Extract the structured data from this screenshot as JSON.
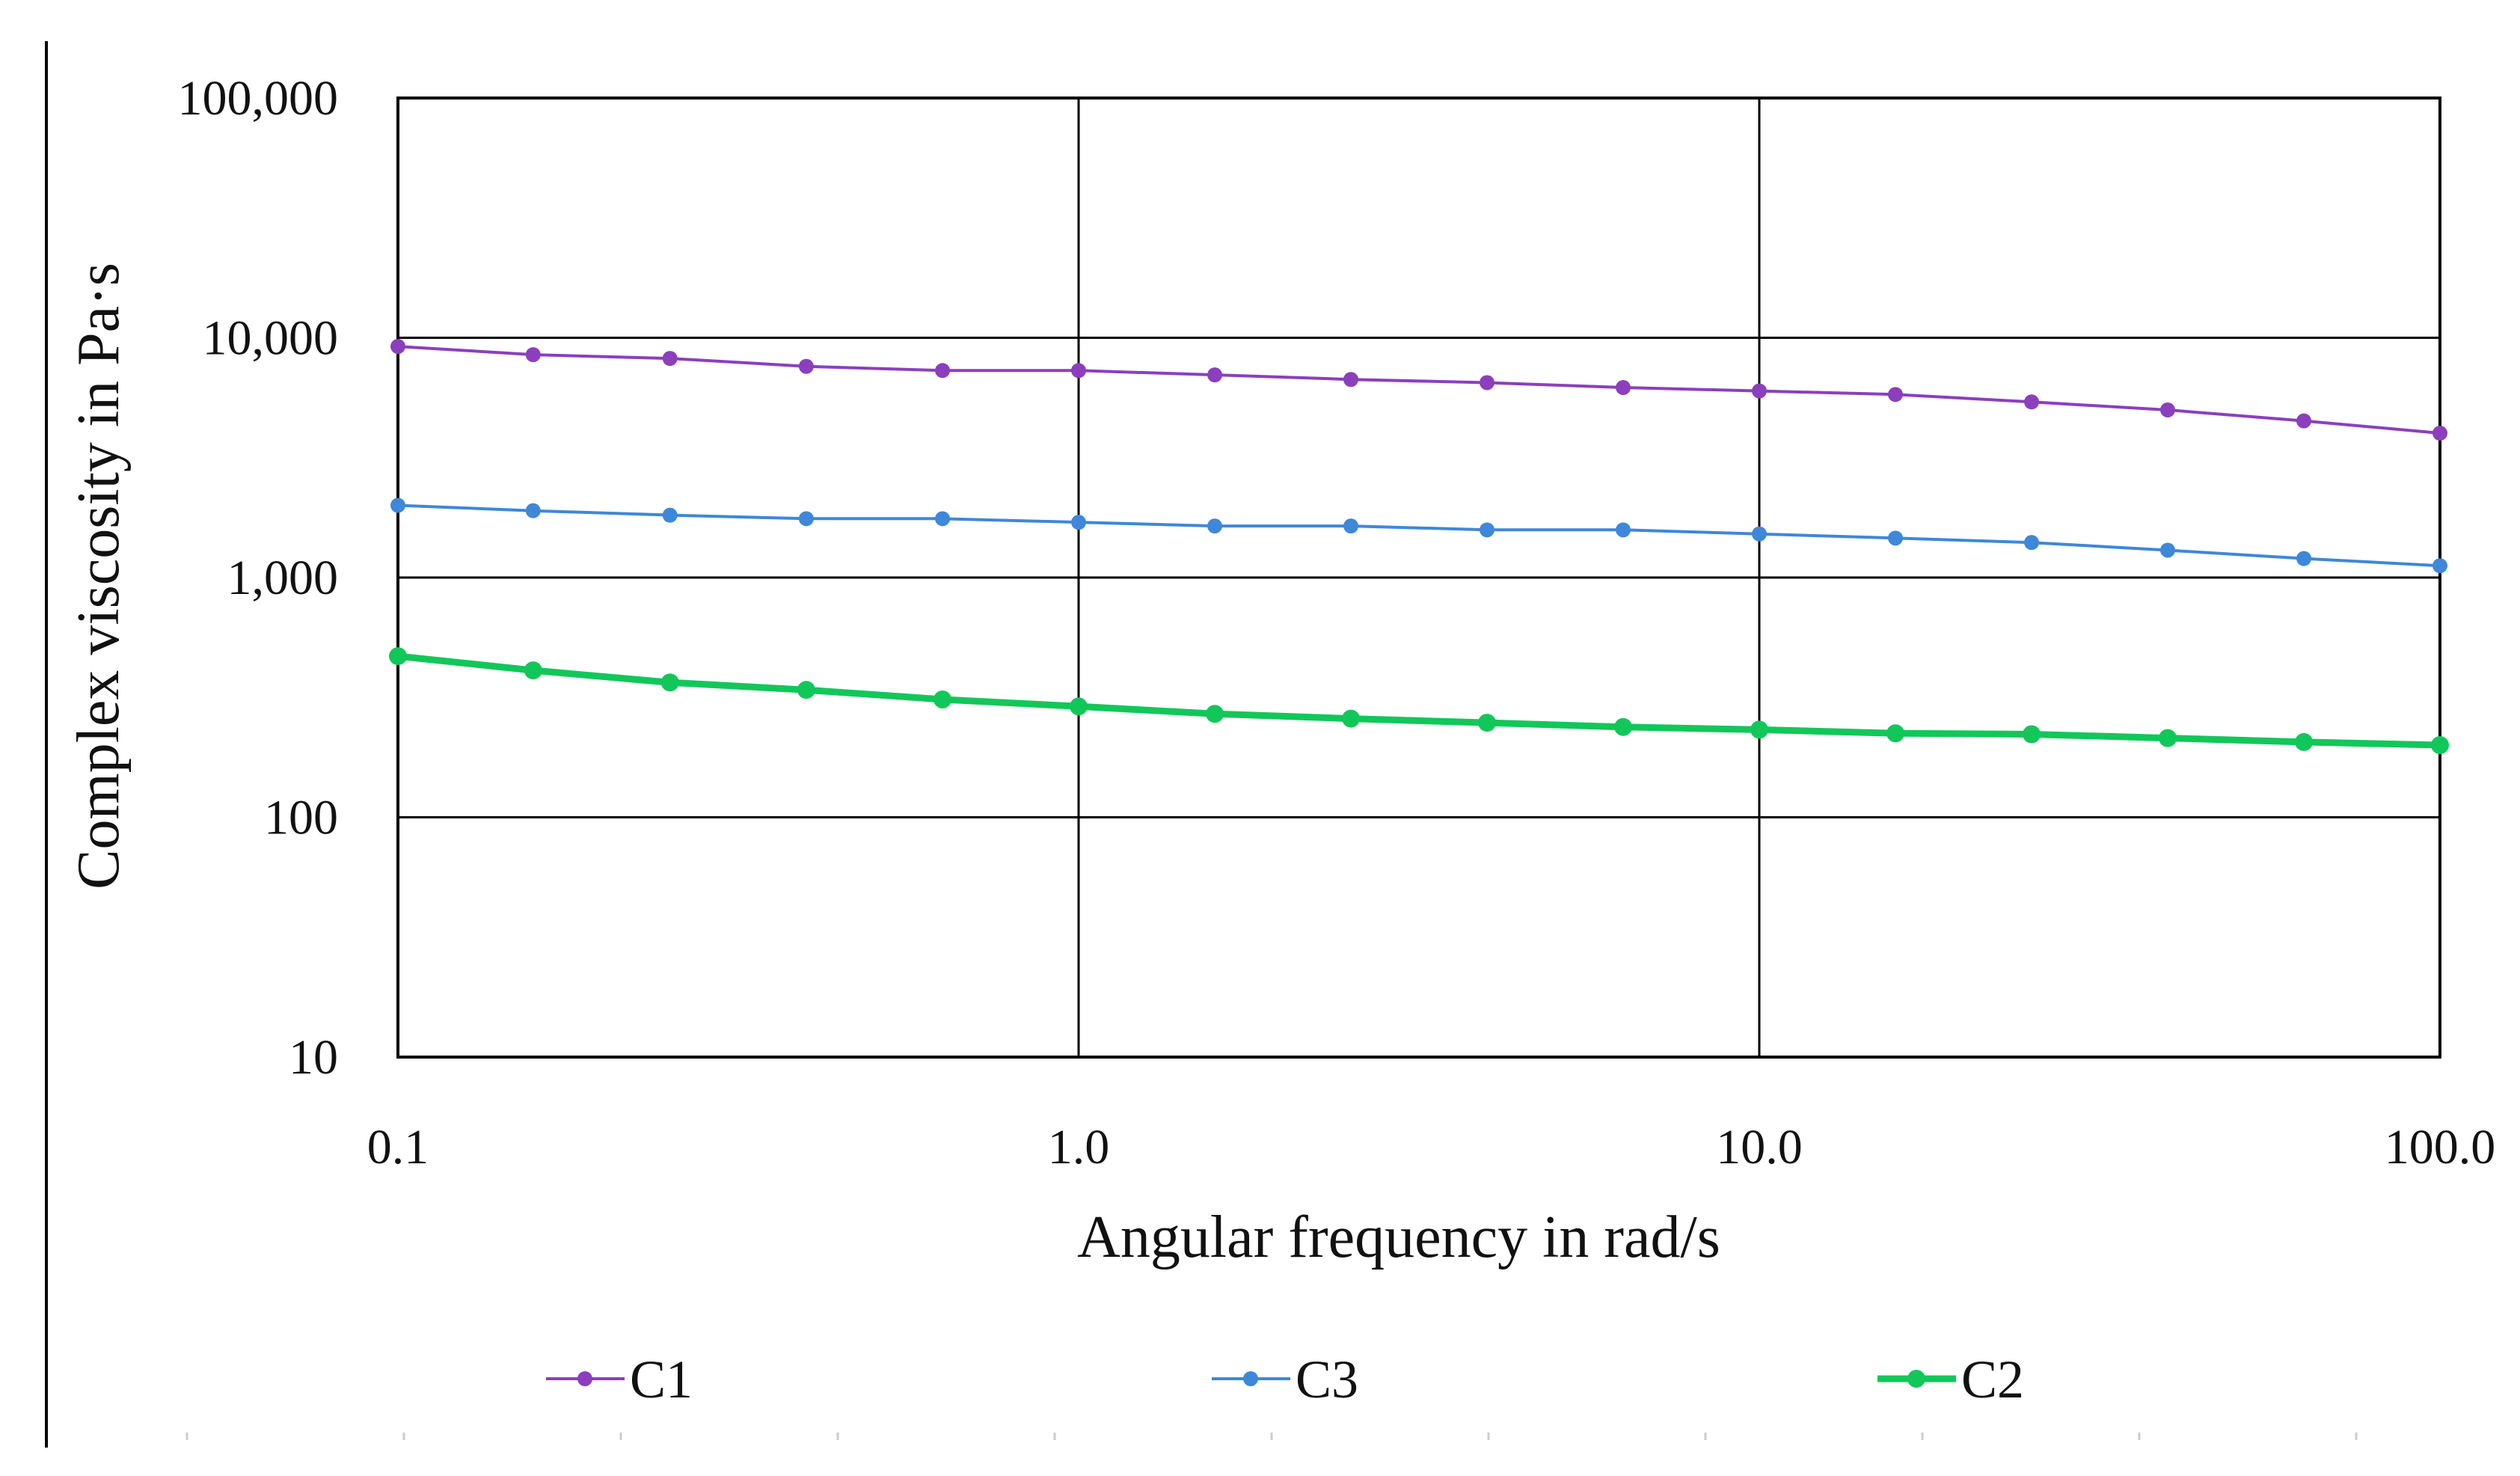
{
  "chart_data": {
    "type": "line",
    "title": "",
    "xlabel": "Angular frequency in rad/s",
    "ylabel": "Complex viscosity in Pa·s",
    "xscale": "log",
    "yscale": "log",
    "xlim": [
      0.1,
      100
    ],
    "ylim": [
      10,
      100000
    ],
    "x_ticks": [
      0.1,
      1,
      10,
      100
    ],
    "x_tick_labels": [
      "0.1",
      "1.0",
      "10.0",
      "100.0"
    ],
    "y_ticks": [
      10,
      100,
      1000,
      10000,
      100000
    ],
    "y_tick_labels": [
      "10",
      "100",
      "1,000",
      "10,000",
      "100,000"
    ],
    "grid": true,
    "legend_position": "bottom",
    "x": [
      0.1,
      0.158,
      0.251,
      0.398,
      0.631,
      1.0,
      1.585,
      2.512,
      3.981,
      6.31,
      10.0,
      15.85,
      25.12,
      39.81,
      63.1,
      100.0
    ],
    "series": [
      {
        "name": "C1",
        "color": "#8b3fbd",
        "values": [
          9200,
          8500,
          8200,
          7600,
          7300,
          7300,
          7000,
          6700,
          6500,
          6200,
          6000,
          5800,
          5400,
          5000,
          4500,
          4000
        ]
      },
      {
        "name": "C3",
        "color": "#3f87d9",
        "values": [
          2000,
          1900,
          1820,
          1760,
          1760,
          1700,
          1640,
          1640,
          1580,
          1580,
          1520,
          1460,
          1400,
          1300,
          1200,
          1120
        ]
      },
      {
        "name": "C2",
        "color": "#12c75a",
        "values": [
          470,
          410,
          365,
          340,
          310,
          290,
          270,
          258,
          248,
          238,
          232,
          224,
          222,
          214,
          206,
          200
        ]
      }
    ]
  }
}
